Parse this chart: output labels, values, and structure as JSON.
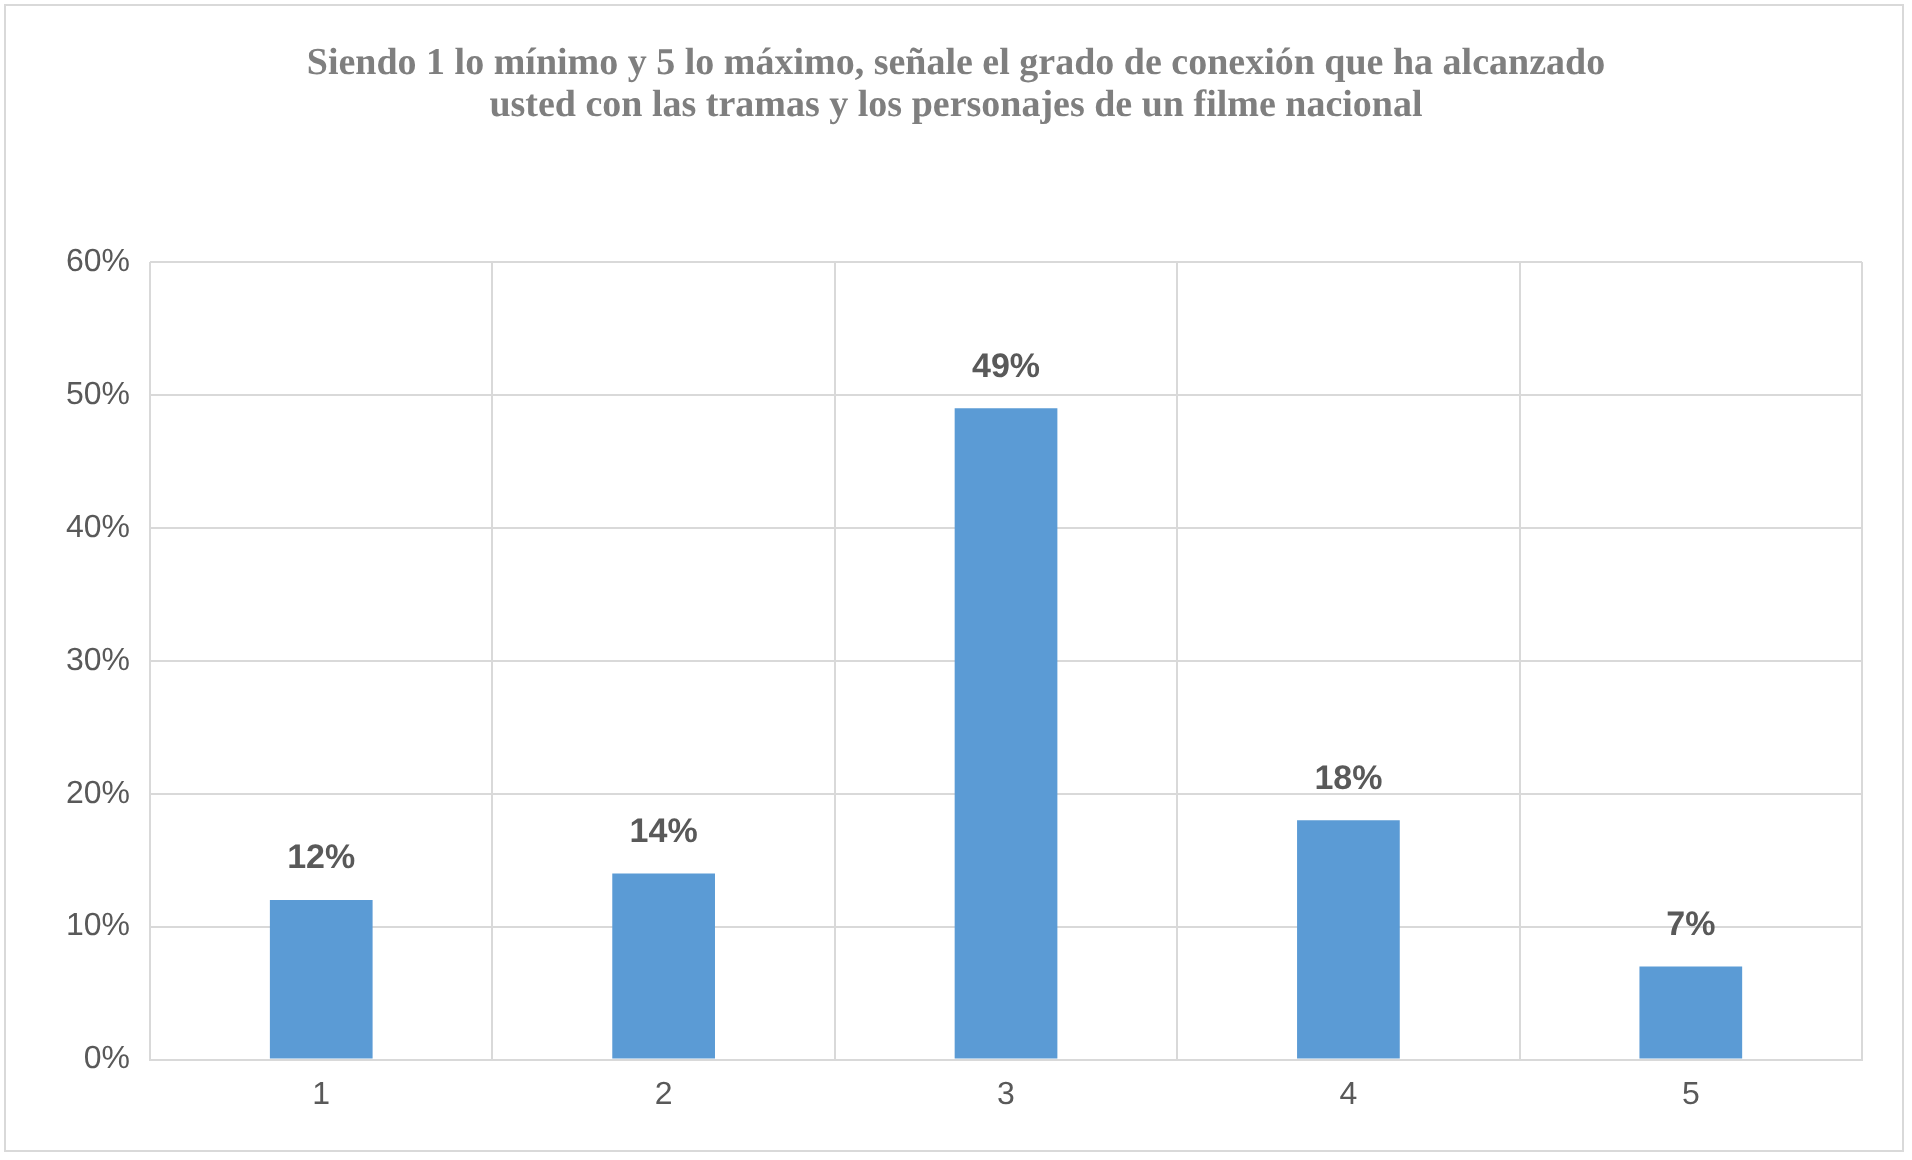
{
  "chart_data": {
    "type": "bar",
    "title": "Siendo 1 lo mínimo y 5 lo máximo, señale el grado de conexión que ha alcanzado usted con las tramas y los personajes de un filme nacional",
    "categories": [
      "1",
      "2",
      "3",
      "4",
      "5"
    ],
    "values": [
      12,
      14,
      49,
      18,
      7
    ],
    "value_labels": [
      "12%",
      "14%",
      "49%",
      "18%",
      "7%"
    ],
    "color": "#5b9bd5",
    "ylim": [
      0,
      60
    ],
    "yticks": [
      {
        "value": 0,
        "label": "0%"
      },
      {
        "value": 10,
        "label": "10%"
      },
      {
        "value": 20,
        "label": "20%"
      },
      {
        "value": 30,
        "label": "30%"
      },
      {
        "value": 40,
        "label": "40%"
      },
      {
        "value": 50,
        "label": "50%"
      },
      {
        "value": 60,
        "label": "60%"
      }
    ],
    "grid": true
  }
}
